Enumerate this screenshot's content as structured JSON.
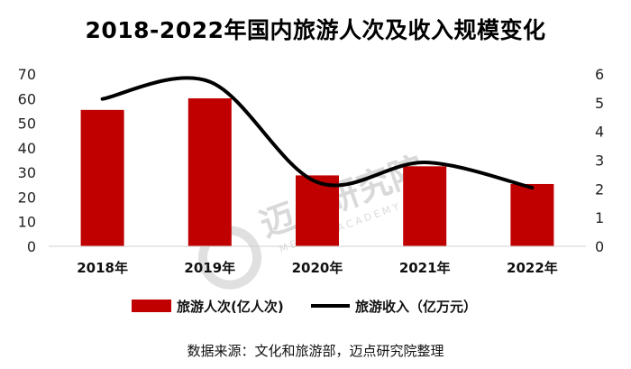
{
  "chart_data": {
    "type": "bar+line",
    "title": "2018-2022年国内旅游人次及收入规模变化",
    "categories": [
      "2018年",
      "2019年",
      "2020年",
      "2021年",
      "2022年"
    ],
    "series": [
      {
        "name": "旅游人次(亿人次)",
        "type": "bar",
        "axis": "left",
        "color": "#c00000",
        "values": [
          55.4,
          60.1,
          28.8,
          32.5,
          25.3
        ]
      },
      {
        "name": "旅游收入（亿万元）",
        "type": "line",
        "axis": "right",
        "color": "#000000",
        "values": [
          5.13,
          5.73,
          2.23,
          2.92,
          2.04
        ]
      }
    ],
    "y_left": {
      "ylim": [
        0,
        70
      ],
      "ticks": [
        "0",
        "10",
        "20",
        "30",
        "40",
        "50",
        "60",
        "70"
      ]
    },
    "y_right": {
      "ylim": [
        0,
        6
      ],
      "ticks": [
        "0",
        "1",
        "2",
        "3",
        "4",
        "5",
        "6"
      ]
    },
    "legend_position": "bottom",
    "grid": false
  },
  "source_note": "数据来源：文化和旅游部，迈点研究院整理",
  "watermark": {
    "name": "迈点研究院",
    "subtitle": "MEADIN ACADEMY"
  }
}
